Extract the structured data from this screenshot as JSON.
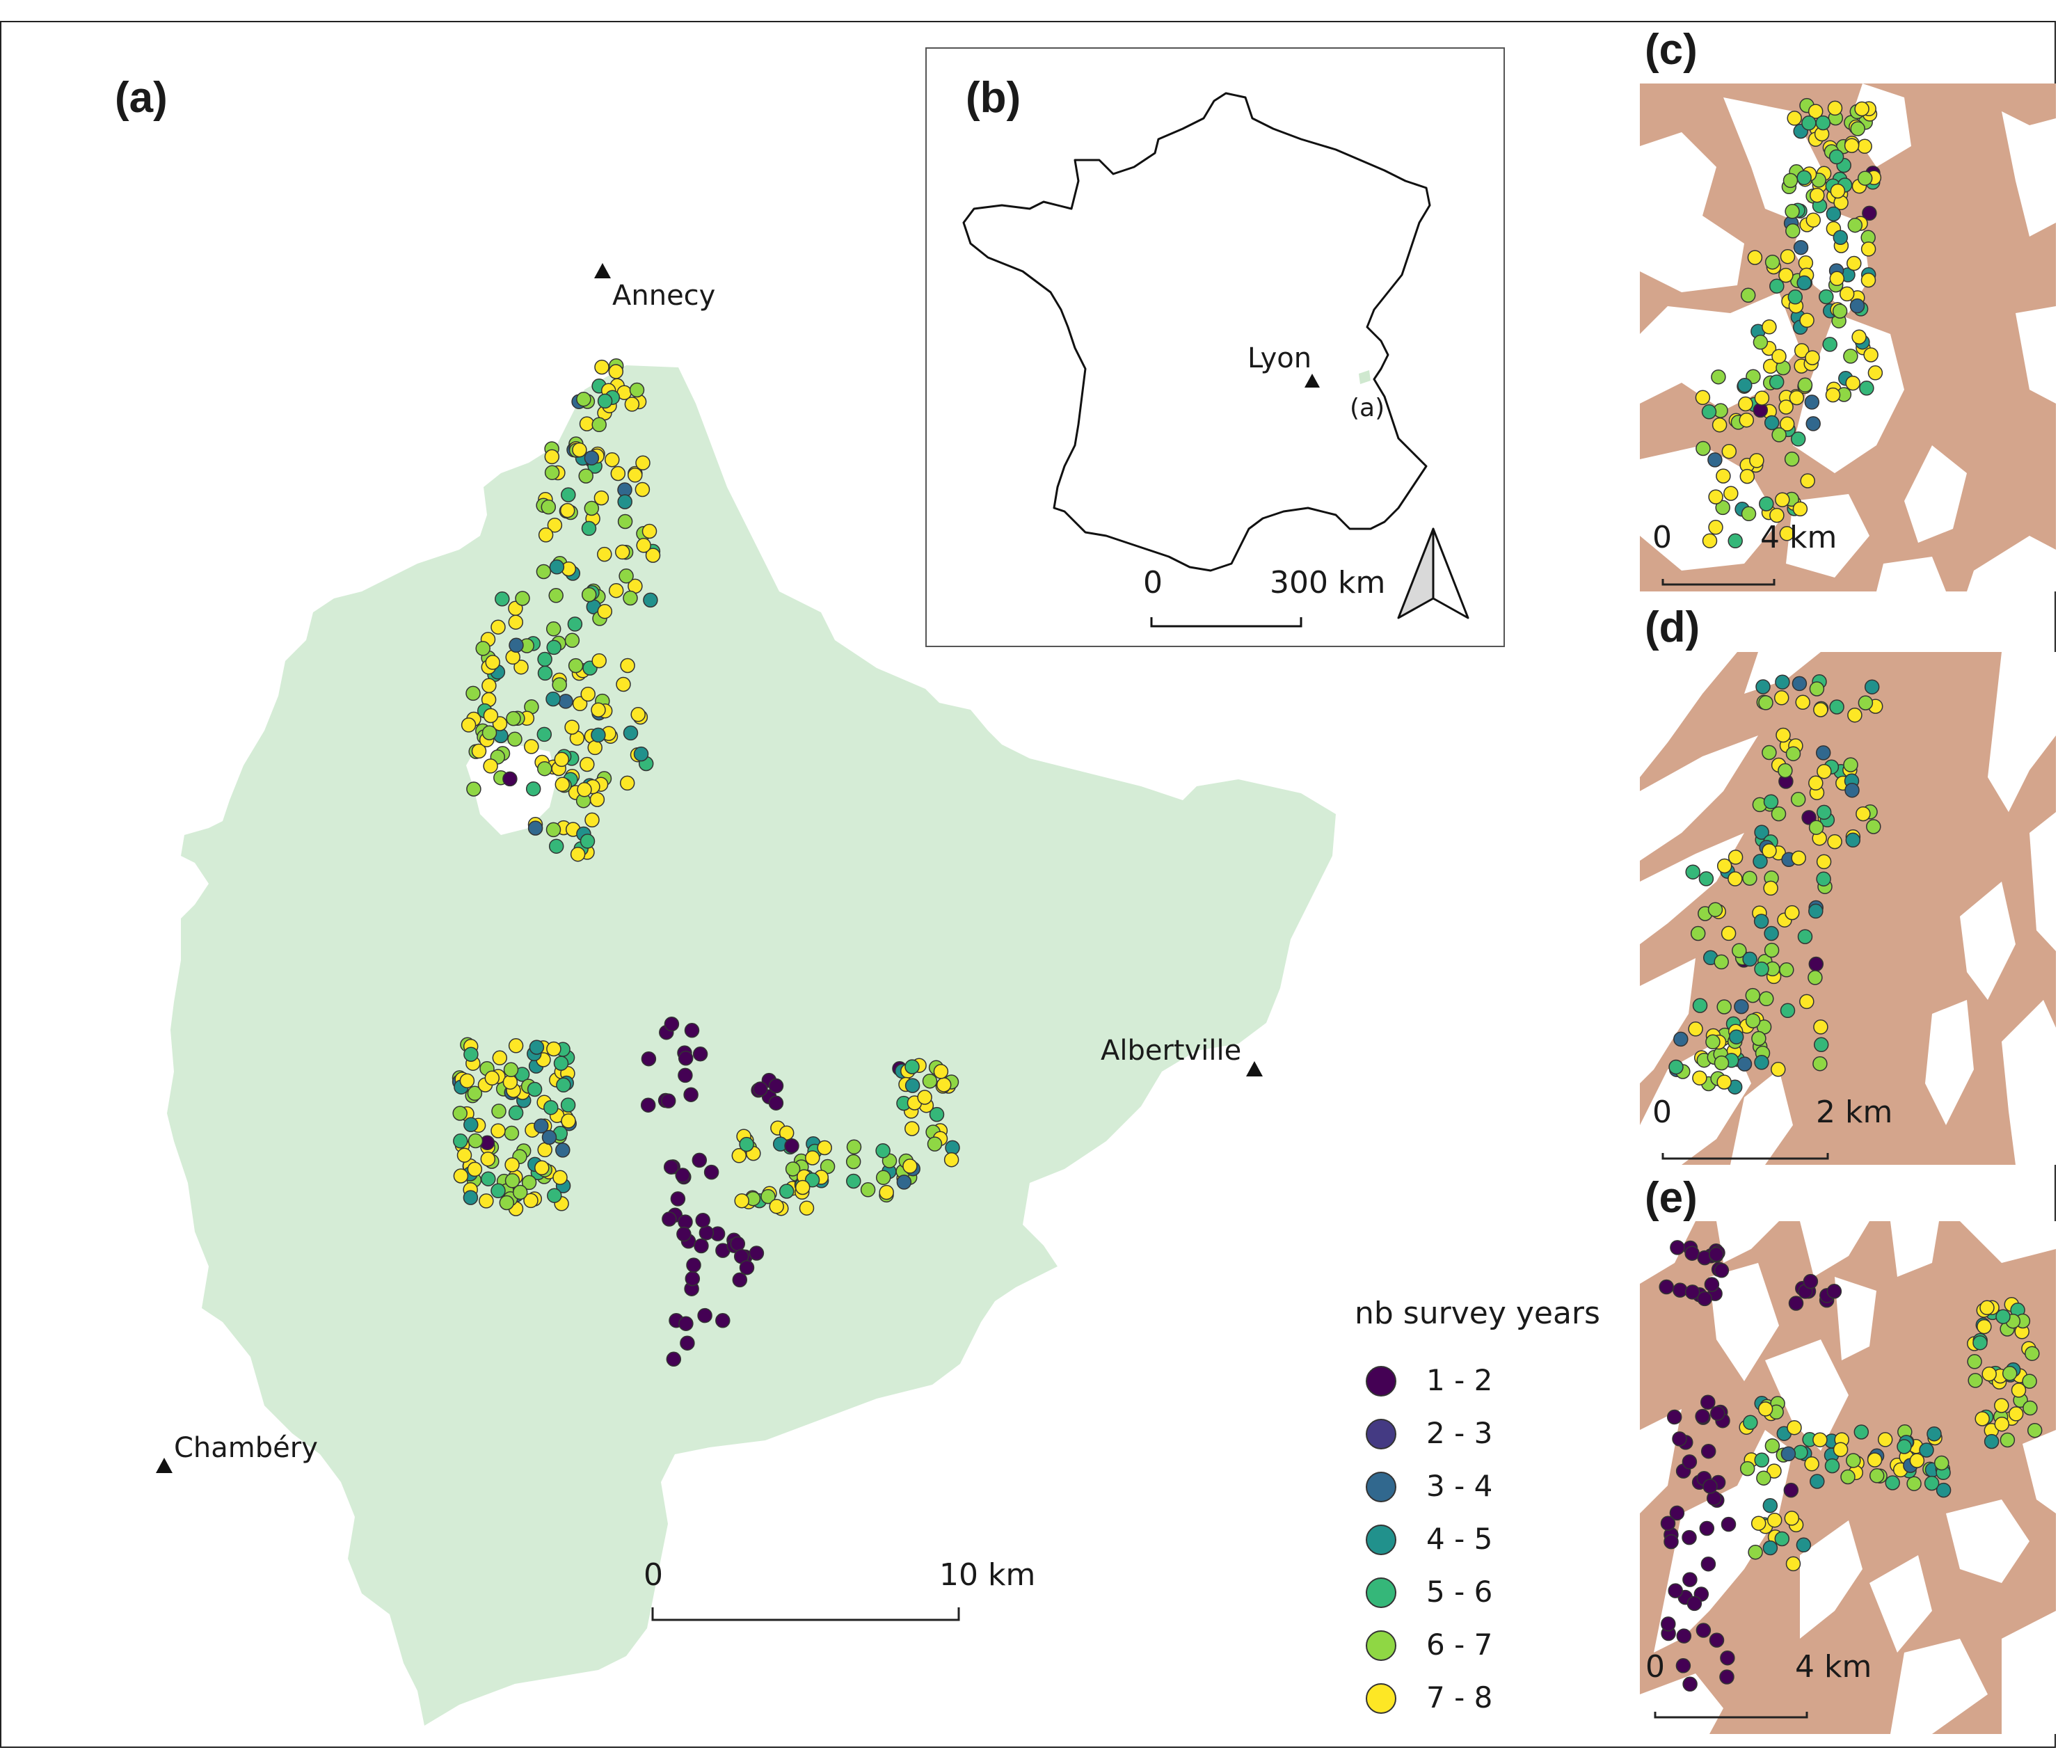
{
  "panels": {
    "a": {
      "label": "(a)"
    },
    "b": {
      "label": "(b)"
    },
    "c": {
      "label": "(c)"
    },
    "d": {
      "label": "(d)"
    },
    "e": {
      "label": "(e)"
    }
  },
  "cities": {
    "annecy": "Annecy",
    "albertville": "Albertville",
    "chambery": "Chambéry",
    "lyon": "Lyon",
    "inset_marker": "(a)"
  },
  "scales": {
    "a": {
      "zero": "0",
      "end": "10 km"
    },
    "b": {
      "zero": "0",
      "end": "300 km"
    },
    "c": {
      "zero": "0",
      "end": "4 km"
    },
    "d": {
      "zero": "0",
      "end": "2 km"
    },
    "e": {
      "zero": "0",
      "end": "4 km"
    }
  },
  "legend": {
    "title": "nb survey years",
    "items": [
      {
        "label": "1 - 2",
        "color": "#440154"
      },
      {
        "label": "2 - 3",
        "color": "#443a83"
      },
      {
        "label": "3 - 4",
        "color": "#31688e"
      },
      {
        "label": "4 - 5",
        "color": "#21918c"
      },
      {
        "label": "5 - 6",
        "color": "#35b779"
      },
      {
        "label": "6 - 7",
        "color": "#8fd744"
      },
      {
        "label": "7 - 8",
        "color": "#fde725"
      }
    ]
  },
  "colors": {
    "study_area": "#d5ecd6",
    "habitat": "#d4a58c",
    "frame": "#222222"
  },
  "icons": {
    "north_arrow": "north-arrow-icon",
    "city_marker": "triangle-marker-icon"
  }
}
